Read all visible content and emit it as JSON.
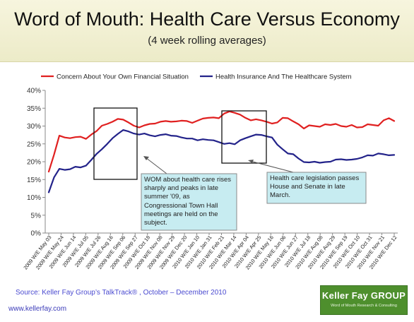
{
  "title": "Word of Mouth: Health Care Versus Economy",
  "subtitle": "(4 week rolling averages)",
  "footer": {
    "source": "Source: Keller Fay Group’s TalkTrack®  , October – December  2010",
    "url": "www.kellerfay.com"
  },
  "logo": {
    "name": "Keller Fay GROUP",
    "tagline": "Word of Mouth Research & Consulting"
  },
  "chart_data": {
    "type": "line",
    "ylim": [
      0,
      40
    ],
    "yticks": [
      "0%",
      "5%",
      "10%",
      "15%",
      "20%",
      "25%",
      "30%",
      "35%",
      "40%"
    ],
    "legend_position": "top",
    "grid": false,
    "x_tick_labels": [
      "2009 W/E May 03",
      "2009 W/E May 24",
      "2009 W/E Jun 14",
      "2009 W/E Jul 05",
      "2009 W/E Jul 26",
      "2009 W/E Aug 16",
      "2009 W/E Sep 06",
      "2009 W/E Sep 27",
      "2009 W/E Oct 18",
      "2009 W/E Nov 08",
      "2009 W/E Nov 29",
      "2009 W/E Dec 20",
      "2010 W/E Jan 10",
      "2010 W/E Jan 31",
      "2010 W/E Feb 21",
      "2010 W/E Mar 14",
      "2010 W/E Apr 04",
      "2010 W/E Apr 25",
      "2010 W/E May 16",
      "2010 W/E Jun 06",
      "2010 W/E Jun 27",
      "2010 W/E Jul 18",
      "2010 W/E Aug 08",
      "2010 W/E Aug 29",
      "2010 W/E Sep 19",
      "2010 W/E Oct 10",
      "2010 W/E Oct 31",
      "2010 W/E Nov 21",
      "2010 W/E Dec 12"
    ],
    "series": [
      {
        "name": "Concern About Your Own Financial Situation",
        "color": "#e02020",
        "values": [
          17.2,
          22.0,
          27.3,
          26.8,
          26.6,
          26.9,
          27.0,
          26.4,
          27.6,
          28.6,
          30.1,
          30.6,
          31.2,
          32.0,
          31.8,
          31.0,
          30.1,
          29.6,
          30.2,
          30.6,
          30.7,
          31.2,
          31.4,
          31.2,
          31.3,
          31.5,
          31.4,
          30.9,
          31.5,
          32.1,
          32.3,
          32.4,
          32.2,
          33.5,
          34.1,
          33.7,
          33.2,
          32.3,
          31.6,
          31.9,
          31.6,
          31.2,
          30.7,
          31.0,
          32.3,
          32.2,
          31.3,
          30.5,
          29.3,
          30.2,
          30.0,
          29.8,
          30.5,
          30.3,
          30.6,
          30.0,
          29.8,
          30.3,
          29.6,
          29.7,
          30.5,
          30.3,
          30.1,
          31.6,
          32.2,
          31.4
        ]
      },
      {
        "name": "Health Insurance And The Healthcare System",
        "color": "#23238a",
        "values": [
          11.4,
          15.6,
          18.0,
          17.7,
          17.9,
          18.6,
          18.4,
          18.9,
          20.5,
          22.2,
          23.5,
          25.0,
          26.6,
          27.8,
          28.9,
          28.5,
          27.9,
          27.6,
          27.9,
          27.4,
          27.1,
          27.5,
          27.7,
          27.3,
          27.2,
          26.8,
          26.5,
          26.5,
          26.0,
          26.3,
          26.1,
          26.0,
          25.5,
          25.0,
          25.2,
          24.9,
          26.0,
          26.6,
          27.1,
          27.6,
          27.5,
          27.1,
          26.8,
          24.8,
          23.5,
          22.3,
          22.1,
          20.9,
          19.9,
          19.8,
          20.0,
          19.7,
          19.9,
          20.0,
          20.6,
          20.7,
          20.5,
          20.6,
          20.8,
          21.2,
          21.8,
          21.7,
          22.3,
          22.1,
          21.8,
          21.9
        ]
      }
    ],
    "annotations": [
      {
        "id": "wom",
        "text": "WOM about health care rises sharply and peaks in late summer '09, as Congressional Town Hall meetings are held on the subject."
      },
      {
        "id": "legislation",
        "text": "Health care legislation passes House and Senate in late March."
      }
    ]
  }
}
